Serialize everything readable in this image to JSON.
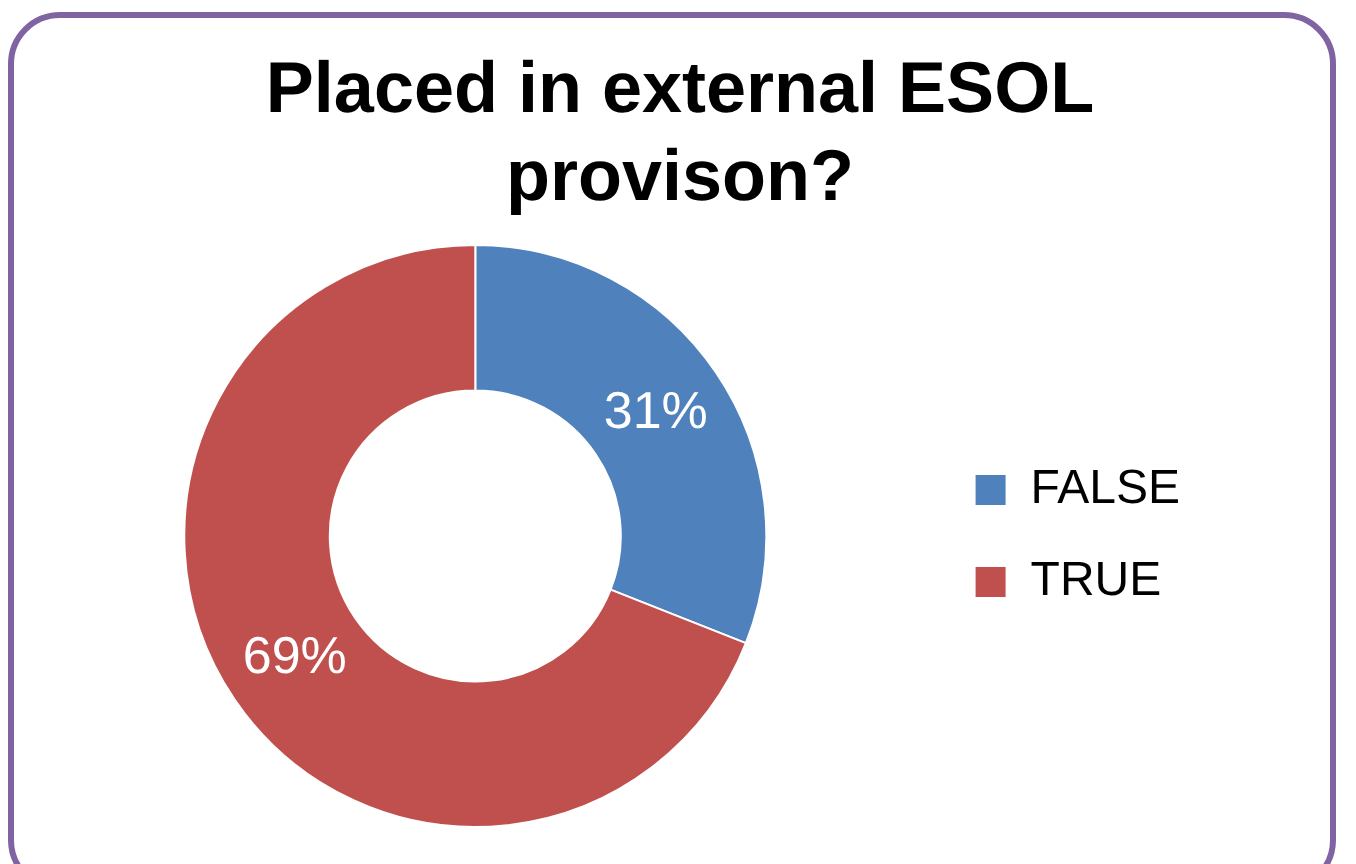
{
  "chart_data": {
    "type": "donut",
    "title": "Placed in external ESOL provison?",
    "categories": [
      "FALSE",
      "TRUE"
    ],
    "values": [
      31,
      69
    ],
    "colors": [
      "#4f81bd",
      "#c0504d"
    ],
    "value_labels": [
      "31%",
      "69%"
    ],
    "legend": "right"
  }
}
